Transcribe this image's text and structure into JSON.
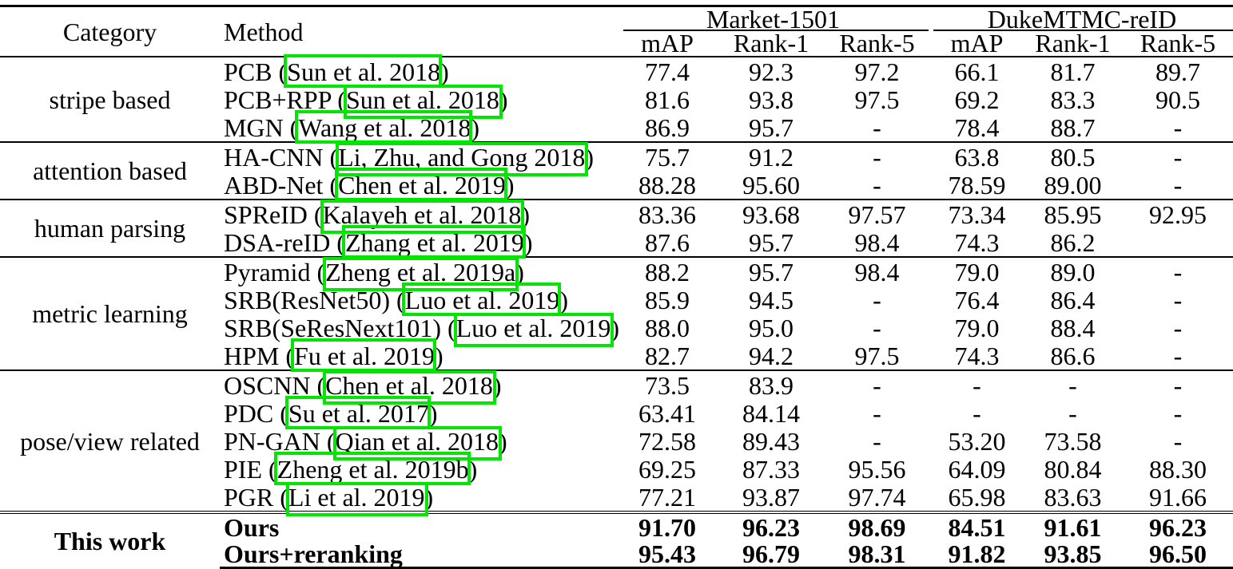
{
  "annotation_color": "#00e600",
  "table": {
    "col_headers": {
      "category": "Category",
      "method": "Method",
      "group1": "Market-1501",
      "group2": "DukeMTMC-reID",
      "metrics": [
        "mAP",
        "Rank-1",
        "Rank-5",
        "mAP",
        "Rank-1",
        "Rank-5"
      ]
    },
    "groups": [
      {
        "category": "stripe based",
        "bold": false,
        "rows": [
          {
            "name": "PCB",
            "cite": "Sun et al. 2018",
            "values": [
              "77.4",
              "92.3",
              "97.2",
              "66.1",
              "81.7",
              "89.7"
            ]
          },
          {
            "name": "PCB+RPP",
            "cite": "Sun et al. 2018",
            "values": [
              "81.6",
              "93.8",
              "97.5",
              "69.2",
              "83.3",
              "90.5"
            ]
          },
          {
            "name": "MGN",
            "cite": "Wang et al. 2018",
            "values": [
              "86.9",
              "95.7",
              "-",
              "78.4",
              "88.7",
              "-"
            ]
          }
        ]
      },
      {
        "category": "attention based",
        "bold": false,
        "rows": [
          {
            "name": "HA-CNN",
            "cite": "Li, Zhu, and Gong 2018",
            "values": [
              "75.7",
              "91.2",
              "-",
              "63.8",
              "80.5",
              "-"
            ]
          },
          {
            "name": "ABD-Net",
            "cite": "Chen et al. 2019",
            "values": [
              "88.28",
              "95.60",
              "-",
              "78.59",
              "89.00",
              "-"
            ]
          }
        ]
      },
      {
        "category": "human parsing",
        "bold": false,
        "rows": [
          {
            "name": "SPReID",
            "cite": "Kalayeh et al. 2018",
            "values": [
              "83.36",
              "93.68",
              "97.57",
              "73.34",
              "85.95",
              "92.95"
            ]
          },
          {
            "name": "DSA-reID",
            "cite": "Zhang et al. 2019",
            "values": [
              "87.6",
              "95.7",
              "98.4",
              "74.3",
              "86.2",
              ""
            ]
          }
        ]
      },
      {
        "category": "metric learning",
        "bold": false,
        "rows": [
          {
            "name": "Pyramid",
            "cite": "Zheng et al. 2019a",
            "values": [
              "88.2",
              "95.7",
              "98.4",
              "79.0",
              "89.0",
              "-"
            ]
          },
          {
            "name": "SRB(ResNet50)",
            "cite": "Luo et al. 2019",
            "values": [
              "85.9",
              "94.5",
              "-",
              "76.4",
              "86.4",
              "-"
            ]
          },
          {
            "name": "SRB(SeResNext101)",
            "cite": "Luo et al. 2019",
            "values": [
              "88.0",
              "95.0",
              "-",
              "79.0",
              "88.4",
              "-"
            ]
          },
          {
            "name": "HPM",
            "cite": "Fu et al. 2019",
            "values": [
              "82.7",
              "94.2",
              "97.5",
              "74.3",
              "86.6",
              "-"
            ]
          }
        ]
      },
      {
        "category": "pose/view related",
        "bold": false,
        "rows": [
          {
            "name": "OSCNN",
            "cite": "Chen et al. 2018",
            "values": [
              "73.5",
              "83.9",
              "-",
              "-",
              "-",
              "-"
            ]
          },
          {
            "name": "PDC",
            "cite": "Su et al. 2017",
            "values": [
              "63.41",
              "84.14",
              "-",
              "-",
              "-",
              "-"
            ]
          },
          {
            "name": "PN-GAN",
            "cite": "Qian et al. 2018",
            "values": [
              "72.58",
              "89.43",
              "-",
              "53.20",
              "73.58",
              "-"
            ]
          },
          {
            "name": "PIE",
            "cite": "Zheng et al. 2019b",
            "values": [
              "69.25",
              "87.33",
              "95.56",
              "64.09",
              "80.84",
              "88.30"
            ]
          },
          {
            "name": "PGR",
            "cite": "Li et al. 2019",
            "values": [
              "77.21",
              "93.87",
              "97.74",
              "65.98",
              "83.63",
              "91.66"
            ]
          }
        ]
      },
      {
        "category": "This work",
        "bold": true,
        "double_rule": true,
        "rows": [
          {
            "name": "Ours",
            "cite": null,
            "values": [
              "91.70",
              "96.23",
              "98.69",
              "84.51",
              "91.61",
              "96.23"
            ]
          },
          {
            "name": "Ours+reranking",
            "cite": null,
            "values": [
              "95.43",
              "96.79",
              "98.31",
              "91.82",
              "93.85",
              "96.50"
            ]
          }
        ]
      }
    ]
  }
}
